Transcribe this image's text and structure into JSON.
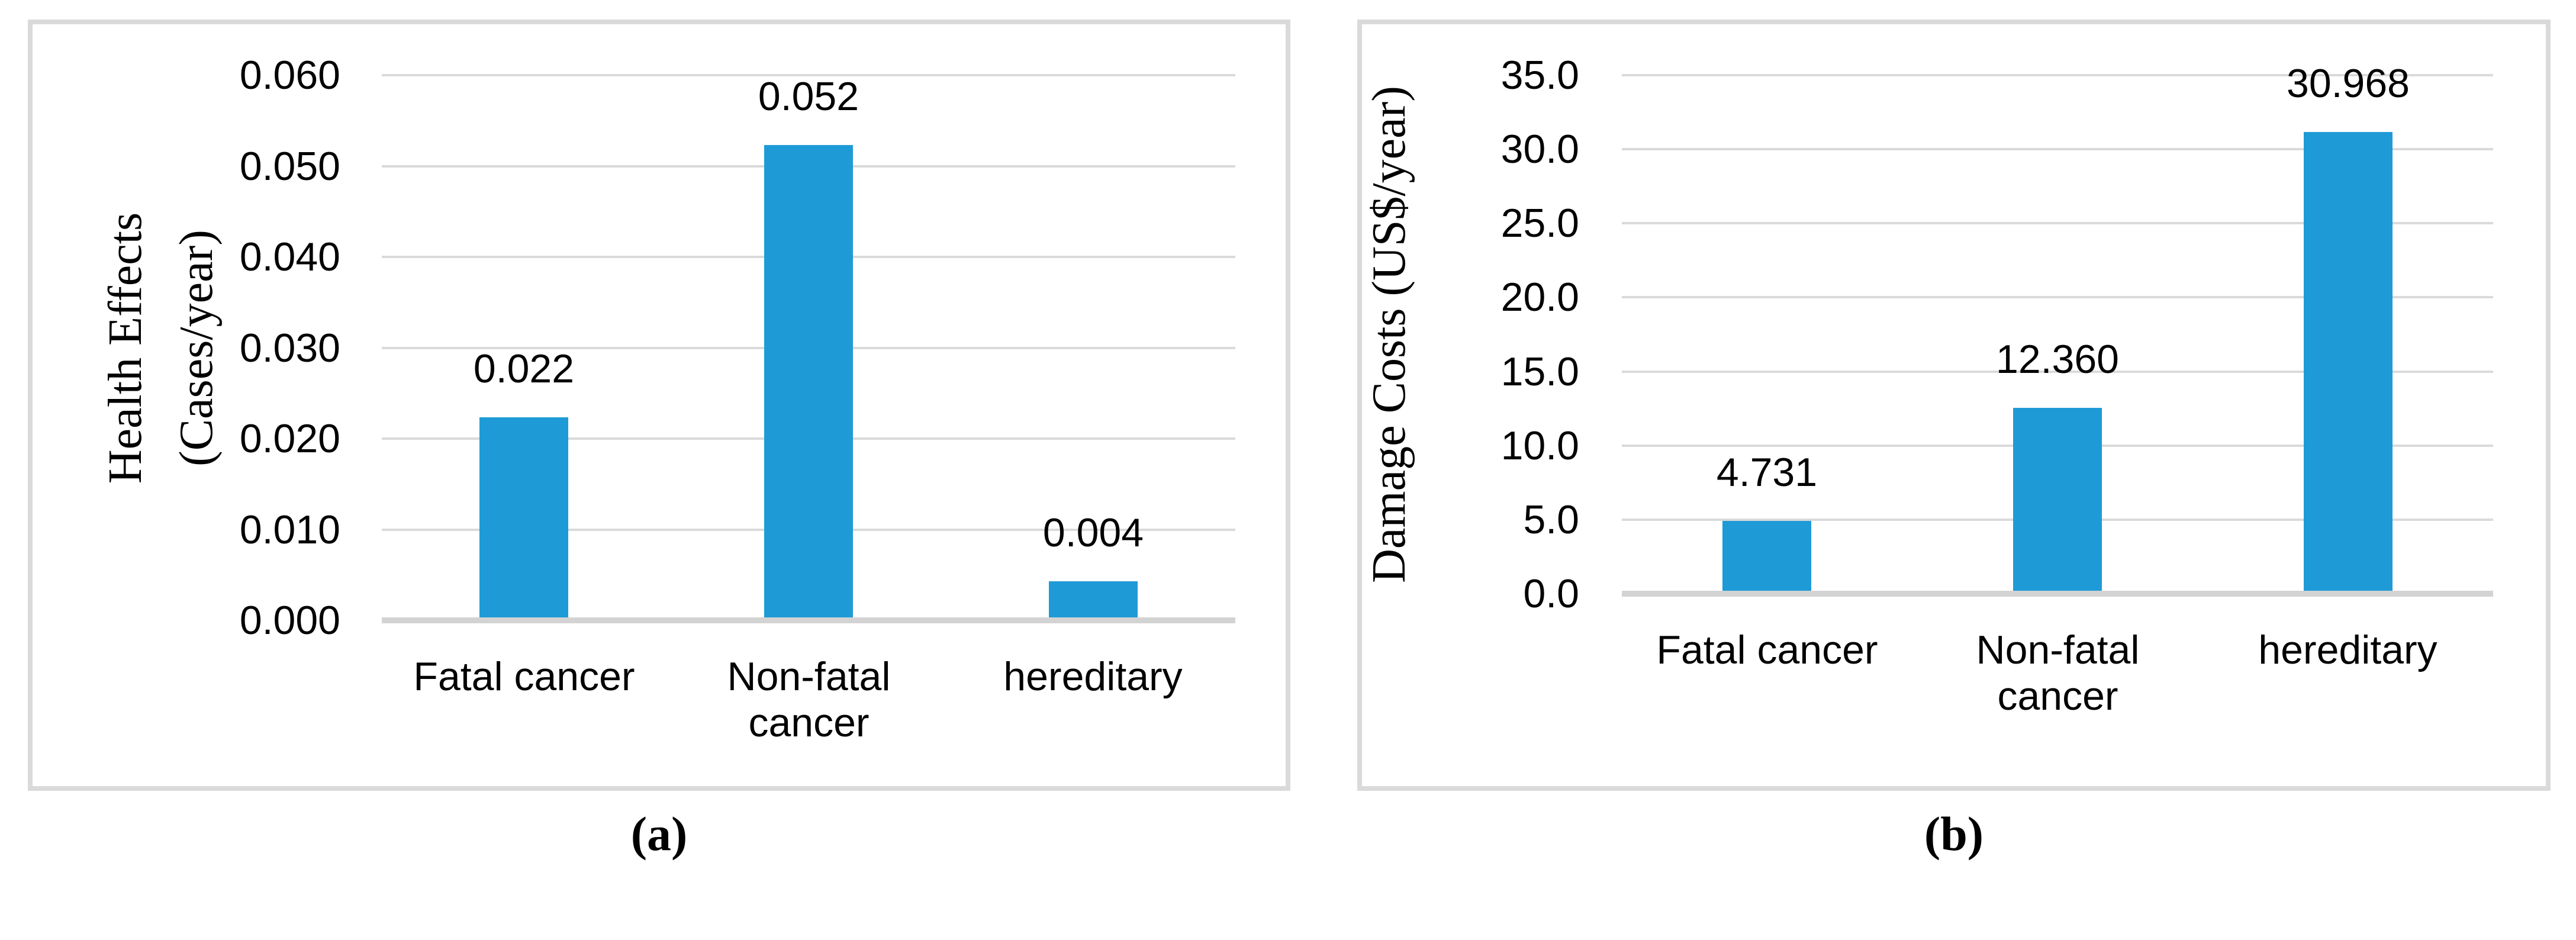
{
  "figure": {
    "colors": {
      "bar": "#1E9BD7",
      "gridline": "#DADADA",
      "axis_line": "#D3D3D3",
      "panel_border": "#DADADA",
      "text": "#000000",
      "background": "#FFFFFF"
    }
  },
  "chart_data": [
    {
      "type": "bar",
      "caption": "(a)",
      "title": "",
      "xlabel": "",
      "ylabel": "Health Effects (Cases/year)",
      "ylabel_lines": [
        "Health Effects",
        "(Cases/year)"
      ],
      "categories": [
        "Fatal cancer",
        "Non-fatal cancer",
        "hereditary"
      ],
      "category_lines": [
        [
          "Fatal cancer"
        ],
        [
          "Non-fatal",
          "cancer"
        ],
        [
          "hereditary"
        ]
      ],
      "values": [
        0.022,
        0.052,
        0.004
      ],
      "value_labels": [
        "0.022",
        "0.052",
        "0.004"
      ],
      "yticks": [
        "0.060",
        "0.050",
        "0.040",
        "0.030",
        "0.020",
        "0.010",
        "0.000"
      ],
      "ylim": [
        0,
        0.06
      ],
      "grid": true,
      "legend": false,
      "bar_color": "#1E9BD7"
    },
    {
      "type": "bar",
      "caption": "(b)",
      "title": "",
      "xlabel": "",
      "ylabel": "Damage Costs (US$/year)",
      "ylabel_lines": [
        "Damage Costs (US$/year)"
      ],
      "categories": [
        "Fatal cancer",
        "Non-fatal cancer",
        "hereditary"
      ],
      "category_lines": [
        [
          "Fatal cancer"
        ],
        [
          "Non-fatal",
          "cancer"
        ],
        [
          "hereditary"
        ]
      ],
      "values": [
        4.731,
        12.36,
        30.968
      ],
      "value_labels": [
        "4.731",
        "12.360",
        "30.968"
      ],
      "yticks": [
        "35.0",
        "30.0",
        "25.0",
        "20.0",
        "15.0",
        "10.0",
        "5.0",
        "0.0"
      ],
      "ylim": [
        0,
        35
      ],
      "grid": true,
      "legend": false,
      "bar_color": "#1E9BD7"
    }
  ]
}
